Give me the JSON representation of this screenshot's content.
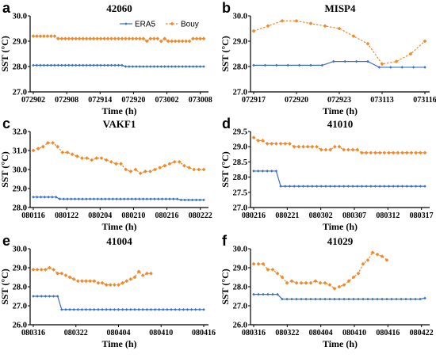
{
  "chart_data": [
    {
      "id": "a",
      "panel": "a",
      "type": "line",
      "title": "42060",
      "xlabel": "Time (h)",
      "ylabel": "SST (°C)",
      "ylim": [
        27.0,
        30.0
      ],
      "yticks": [
        "27.0",
        "28.0",
        "29.0",
        "30.0"
      ],
      "xticks": [
        "072902",
        "072908",
        "072914",
        "072920",
        "073002",
        "073008"
      ],
      "grid": false,
      "legend": "top-right",
      "series": [
        {
          "name": "ERA5",
          "color": "#3a6fc4",
          "marker": "diamond",
          "values": [
            28.05,
            28.05,
            28.05,
            28.05,
            28.05,
            28.05,
            28.05,
            28.05,
            28.05,
            28.05,
            28.05,
            28.05,
            28.05,
            28.05,
            28.05,
            28.05,
            28.05,
            28.05,
            28.05,
            28.05,
            28.05,
            28.05,
            28.05,
            28.05,
            28.05,
            28.05,
            28.0,
            28.0,
            28.0,
            28.0,
            28.0,
            28.0,
            28.0,
            28.0,
            28.0,
            28.0,
            28.0,
            28.0,
            28.0,
            28.0,
            28.0,
            28.0,
            28.0,
            28.0,
            28.0,
            28.0,
            28.0,
            28.0,
            28.0
          ]
        },
        {
          "name": "Bouy",
          "color": "#ef8a2c",
          "marker": "diamond",
          "values": [
            29.2,
            29.2,
            29.2,
            29.2,
            29.2,
            29.2,
            29.2,
            29.1,
            29.1,
            29.1,
            29.1,
            29.1,
            29.1,
            29.1,
            29.1,
            29.1,
            29.1,
            29.1,
            29.1,
            29.1,
            29.1,
            29.1,
            29.1,
            29.1,
            29.1,
            29.1,
            29.1,
            29.1,
            29.1,
            29.1,
            29.1,
            29.1,
            29.0,
            29.1,
            29.1,
            29.1,
            29.0,
            29.1,
            29.0,
            29.0,
            29.0,
            29.0,
            29.0,
            29.0,
            29.0,
            29.1,
            29.1,
            29.1,
            29.1
          ]
        }
      ]
    },
    {
      "id": "b",
      "panel": "b",
      "type": "line",
      "title": "MISP4",
      "xlabel": "Time (h)",
      "ylabel": "SST (°C)",
      "ylim": [
        27.0,
        30.0
      ],
      "yticks": [
        "27.0",
        "28.0",
        "29.0",
        "30.0"
      ],
      "xticks": [
        "072917",
        "072920",
        "072923",
        "073113",
        "073116"
      ],
      "grid": false,
      "series": [
        {
          "name": "ERA5",
          "color": "#3a6fc4",
          "marker": "diamond",
          "values": [
            28.05,
            28.05,
            28.05,
            28.05,
            28.05,
            28.05,
            28.05,
            28.2,
            28.2,
            28.2,
            28.2,
            27.97,
            27.97,
            27.97,
            27.97,
            27.97
          ]
        },
        {
          "name": "Bouy",
          "color": "#ef8a2c",
          "marker": "diamond",
          "values": [
            29.4,
            29.6,
            29.8,
            29.8,
            29.7,
            29.6,
            29.5,
            29.2,
            28.9,
            28.1,
            28.2,
            28.5,
            29.0
          ]
        }
      ],
      "series_x": [
        [
          0,
          1,
          2,
          3,
          4,
          5,
          6,
          7,
          8,
          9,
          10,
          11,
          12,
          13,
          14,
          15
        ],
        [
          0,
          1.25,
          2.5,
          3.75,
          5,
          6.25,
          7.5,
          8.75,
          10,
          11.25,
          12.5,
          13.75,
          15
        ]
      ]
    },
    {
      "id": "c",
      "panel": "c",
      "type": "line",
      "title": "VAKF1",
      "xlabel": "Time (h)",
      "ylabel": "SST (°C)",
      "ylim": [
        28.0,
        32.0
      ],
      "yticks": [
        "28.0",
        "29.0",
        "30.0",
        "31.0",
        "32.0"
      ],
      "xticks": [
        "080116",
        "080122",
        "080204",
        "080210",
        "080216",
        "080222"
      ],
      "grid": false,
      "series": [
        {
          "name": "ERA5",
          "color": "#3a6fc4",
          "marker": "diamond",
          "values": [
            28.55,
            28.55,
            28.55,
            28.55,
            28.55,
            28.55,
            28.55,
            28.45,
            28.45,
            28.45,
            28.45,
            28.45,
            28.45,
            28.45,
            28.45,
            28.45,
            28.45,
            28.45,
            28.45,
            28.45,
            28.45,
            28.45,
            28.45,
            28.45,
            28.45,
            28.45,
            28.45,
            28.45,
            28.45,
            28.45,
            28.45,
            28.45,
            28.45,
            28.45,
            28.45,
            28.45,
            28.45,
            28.45,
            28.45,
            28.4,
            28.4,
            28.4,
            28.4,
            28.4,
            28.4,
            28.4
          ]
        },
        {
          "name": "Bouy",
          "color": "#ef8a2c",
          "marker": "diamond",
          "values": [
            31.0,
            31.1,
            31.2,
            31.4,
            31.4,
            31.2,
            30.9,
            30.9,
            30.8,
            30.7,
            30.6,
            30.6,
            30.5,
            30.6,
            30.6,
            30.5,
            30.4,
            30.3,
            30.3,
            30.0,
            29.9,
            30.0,
            29.8,
            29.9,
            29.9,
            30.0,
            30.1,
            30.2,
            30.3,
            30.4,
            30.4,
            30.2,
            30.1,
            30.0,
            30.0,
            30.0
          ]
        }
      ],
      "series_x": [
        [
          0,
          1,
          2,
          3,
          4,
          5,
          6,
          7,
          8,
          9,
          10,
          11,
          12,
          13,
          14,
          15,
          16,
          17,
          18,
          19,
          20,
          21,
          22,
          23,
          24,
          25,
          26,
          27,
          28,
          29,
          30,
          31,
          32,
          33,
          34,
          35,
          36,
          37,
          38,
          39,
          40,
          41,
          42,
          43,
          44,
          45
        ],
        [
          0,
          1.29,
          2.57,
          3.86,
          5.14,
          6.43,
          7.71,
          9,
          10.29,
          11.57,
          12.86,
          14.14,
          15.43,
          16.71,
          18,
          19.29,
          20.57,
          21.86,
          23.14,
          24.43,
          25.71,
          27,
          28.29,
          29.57,
          30.86,
          32.14,
          33.43,
          34.71,
          36,
          37.29,
          38.57,
          39.86,
          41.14,
          42.43,
          43.71,
          45
        ]
      ]
    },
    {
      "id": "d",
      "panel": "d",
      "type": "line",
      "title": "41010",
      "xlabel": "Time (h)",
      "ylabel": "SST (°C)",
      "ylim": [
        27.0,
        29.5
      ],
      "yticks": [
        "27.0",
        "27.5",
        "28.0",
        "28.5",
        "29.0",
        "29.5"
      ],
      "xticks": [
        "080216",
        "080221",
        "080302",
        "080307",
        "080312",
        "080317"
      ],
      "grid": false,
      "series": [
        {
          "name": "ERA5",
          "color": "#3a6fc4",
          "marker": "diamond",
          "values": [
            28.2,
            28.2,
            28.2,
            28.2,
            28.2,
            28.2,
            27.7,
            27.7,
            27.7,
            27.7,
            27.7,
            27.7,
            27.7,
            27.7,
            27.7,
            27.7,
            27.7,
            27.7,
            27.7,
            27.7,
            27.7,
            27.7,
            27.7,
            27.7,
            27.7,
            27.7,
            27.7,
            27.7,
            27.7,
            27.7,
            27.7,
            27.7,
            27.7,
            27.7,
            27.7,
            27.7,
            27.7,
            27.7,
            27.7
          ]
        },
        {
          "name": "Bouy",
          "color": "#ef8a2c",
          "marker": "diamond",
          "values": [
            29.3,
            29.2,
            29.2,
            29.1,
            29.1,
            29.1,
            29.1,
            29.1,
            29.1,
            29.0,
            29.0,
            29.0,
            29.0,
            29.0,
            29.0,
            28.9,
            28.9,
            28.9,
            29.0,
            29.0,
            28.9,
            28.9,
            28.9,
            28.9,
            28.8,
            28.8,
            28.8,
            28.8,
            28.8,
            28.8,
            28.8,
            28.8,
            28.8,
            28.8,
            28.8,
            28.8,
            28.8,
            28.8,
            28.8
          ]
        }
      ]
    },
    {
      "id": "e",
      "panel": "e",
      "type": "line",
      "title": "41004",
      "xlabel": "Time (h)",
      "ylabel": "SST (°C)",
      "ylim": [
        26.0,
        30.0
      ],
      "yticks": [
        "26.0",
        "27.0",
        "28.0",
        "29.0",
        "30.0"
      ],
      "xticks": [
        "080316",
        "080322",
        "080404",
        "080410",
        "080416"
      ],
      "grid": false,
      "series": [
        {
          "name": "ERA5",
          "color": "#3a6fc4",
          "marker": "diamond",
          "values": [
            27.5,
            27.5,
            27.5,
            27.5,
            27.5,
            27.5,
            27.5,
            26.8,
            26.8,
            26.8,
            26.8,
            26.8,
            26.8,
            26.8,
            26.8,
            26.8,
            26.8,
            26.8,
            26.8,
            26.8,
            26.8,
            26.8,
            26.8,
            26.8,
            26.8,
            26.8,
            26.8,
            26.8,
            26.8,
            26.8,
            26.8,
            26.8,
            26.8,
            26.8,
            26.8,
            26.8,
            26.8,
            26.8,
            26.8,
            26.8,
            26.8,
            26.8,
            26.8
          ]
        },
        {
          "name": "Bouy",
          "color": "#ef8a2c",
          "marker": "diamond",
          "values": [
            28.9,
            28.9,
            28.9,
            28.9,
            29.0,
            28.9,
            28.7,
            28.7,
            28.6,
            28.5,
            28.4,
            28.3,
            28.3,
            28.3,
            28.3,
            28.3,
            28.2,
            28.2,
            28.1,
            28.1,
            28.1,
            28.1,
            28.2,
            28.3,
            28.4,
            28.5,
            28.8,
            28.6,
            28.7,
            28.7
          ]
        }
      ]
    },
    {
      "id": "f",
      "panel": "f",
      "type": "line",
      "title": "41029",
      "xlabel": "Time (h)",
      "ylabel": "SST (°C)",
      "ylim": [
        26.0,
        30.0
      ],
      "yticks": [
        "26.0",
        "27.0",
        "28.0",
        "29.0",
        "30.0"
      ],
      "xticks": [
        "080316",
        "080322",
        "080404",
        "080410",
        "080416",
        "080422"
      ],
      "grid": false,
      "series": [
        {
          "name": "ERA5",
          "color": "#3a6fc4",
          "marker": "diamond",
          "values": [
            27.6,
            27.6,
            27.6,
            27.6,
            27.6,
            27.6,
            27.35,
            27.35,
            27.35,
            27.35,
            27.35,
            27.35,
            27.35,
            27.35,
            27.35,
            27.35,
            27.35,
            27.35,
            27.35,
            27.35,
            27.35,
            27.35,
            27.35,
            27.35,
            27.35,
            27.35,
            27.35,
            27.35,
            27.35,
            27.35,
            27.35,
            27.35,
            27.35,
            27.35,
            27.35,
            27.35,
            27.4
          ]
        },
        {
          "name": "Bouy",
          "color": "#ef8a2c",
          "marker": "diamond",
          "values": [
            29.2,
            29.2,
            29.2,
            28.9,
            28.9,
            28.7,
            28.5,
            28.2,
            28.3,
            28.2,
            28.2,
            28.2,
            28.2,
            28.3,
            28.2,
            28.2,
            28.1,
            27.9,
            28.0,
            28.1,
            28.3,
            28.5,
            28.7,
            29.2,
            29.4,
            29.8,
            29.7,
            29.6,
            29.4
          ]
        }
      ]
    }
  ]
}
